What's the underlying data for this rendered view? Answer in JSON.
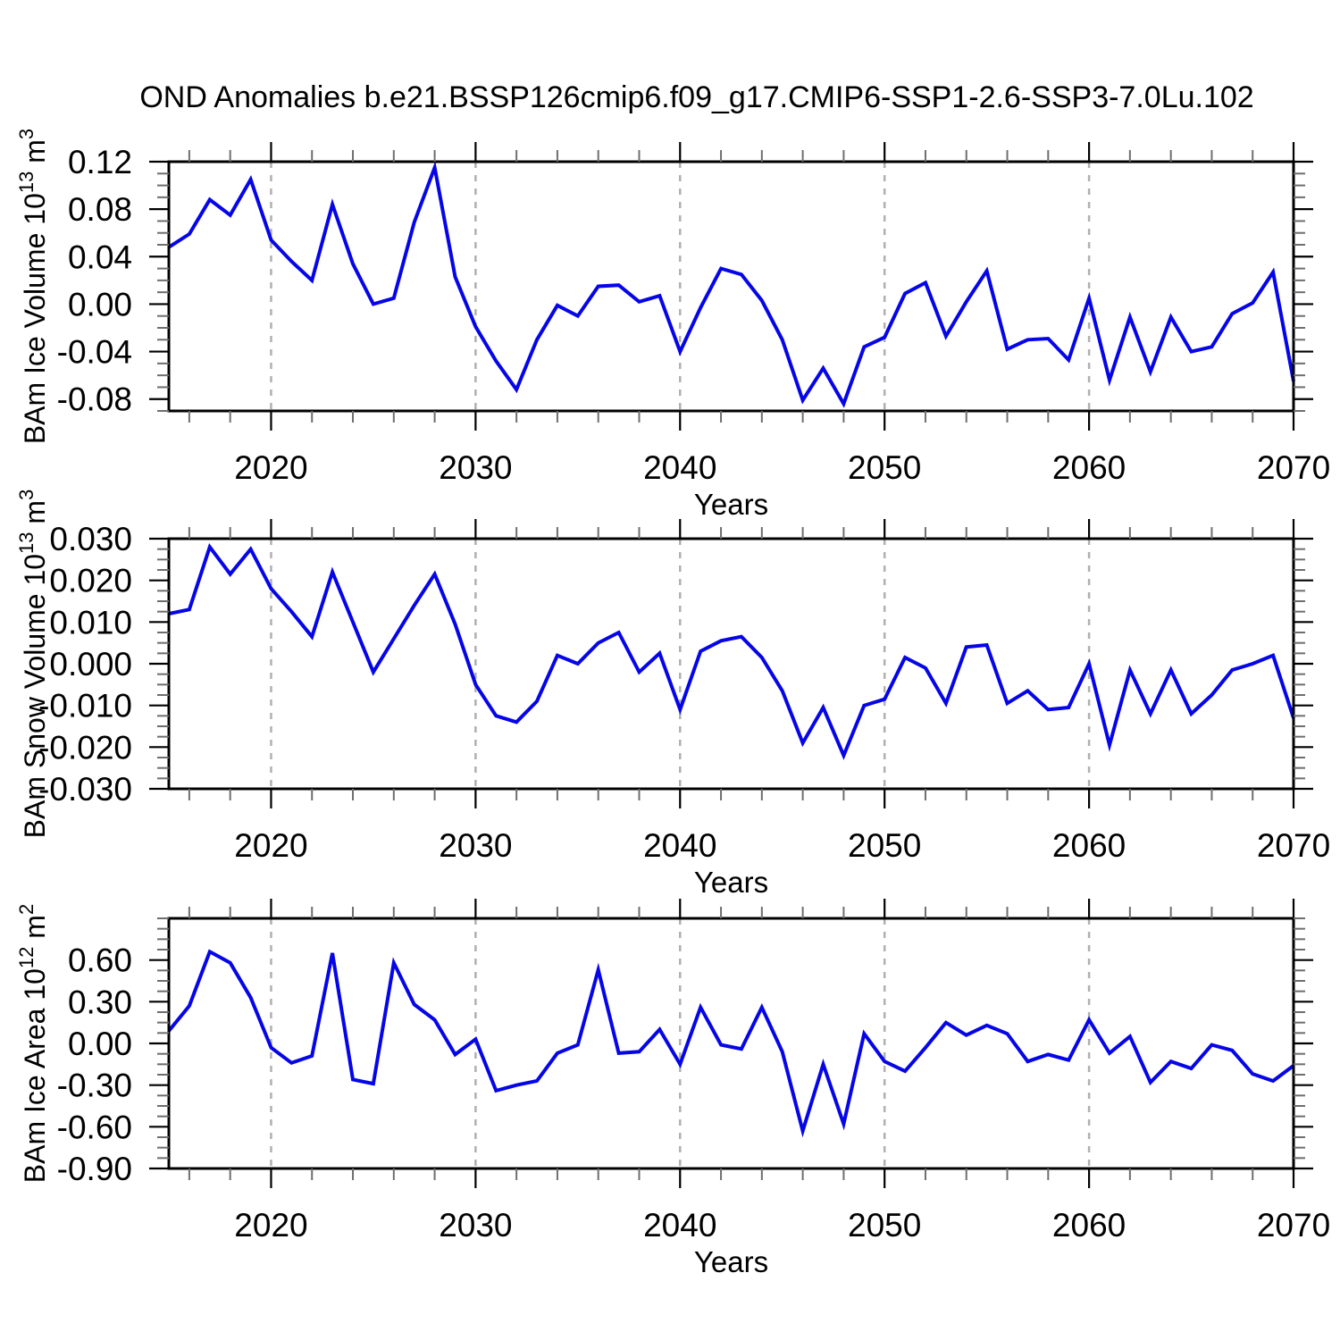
{
  "chart_data": {
    "type": "line",
    "suptitle": "OND Anomalies b.e21.BSSP126cmip6.f09_g17.CMIP6-SSP1-2.6-SSP3-7.0Lu.102",
    "xlabel": "Years",
    "xlim": [
      2015,
      2070
    ],
    "xticks_major": [
      2020,
      2030,
      2040,
      2050,
      2060,
      2070
    ],
    "xtick_minor_step": 2,
    "grid_x": [
      2020,
      2030,
      2040,
      2050,
      2060
    ],
    "line_color": "#0505e8",
    "grid_color": "#b0b0b0",
    "x": [
      2015,
      2016,
      2017,
      2018,
      2019,
      2020,
      2021,
      2022,
      2023,
      2024,
      2025,
      2026,
      2027,
      2028,
      2029,
      2030,
      2031,
      2032,
      2033,
      2034,
      2035,
      2036,
      2037,
      2038,
      2039,
      2040,
      2041,
      2042,
      2043,
      2044,
      2045,
      2046,
      2047,
      2048,
      2049,
      2050,
      2051,
      2052,
      2053,
      2054,
      2055,
      2056,
      2057,
      2058,
      2059,
      2060,
      2061,
      2062,
      2063,
      2064,
      2065,
      2066,
      2067,
      2068,
      2069,
      2070
    ],
    "panels": [
      {
        "id": "ice-volume",
        "ylabel_text": "BAm Ice Volume 10^13 m^3",
        "ylabel": {
          "pre": "BAm Ice Volume 10",
          "sup": "13",
          "mid": " m",
          "sup2": "3"
        },
        "ylim": [
          -0.09,
          0.12
        ],
        "yticks": [
          0.12,
          0.08,
          0.04,
          0,
          -0.04,
          -0.08
        ],
        "ytick_decimals": 2,
        "yminor_step": 0.01,
        "values": [
          0.048,
          0.059,
          0.088,
          0.075,
          0.105,
          0.054,
          0.036,
          0.02,
          0.084,
          0.034,
          0.0,
          0.005,
          0.069,
          0.115,
          0.023,
          -0.019,
          -0.048,
          -0.072,
          -0.03,
          -0.001,
          -0.01,
          0.015,
          0.016,
          0.002,
          0.007,
          -0.04,
          -0.003,
          0.03,
          0.025,
          0.003,
          -0.03,
          -0.081,
          -0.054,
          -0.084,
          -0.036,
          -0.028,
          0.009,
          0.018,
          -0.027,
          0.002,
          0.028,
          -0.038,
          -0.03,
          -0.029,
          -0.047,
          0.005,
          -0.064,
          -0.011,
          -0.057,
          -0.011,
          -0.04,
          -0.036,
          -0.008,
          0.001,
          0.027,
          -0.065
        ]
      },
      {
        "id": "snow-volume",
        "ylabel_text": "BAm Snow Volume 10^13 m^3",
        "ylabel": {
          "pre": "BAm Snow Volume 10",
          "sup": "13",
          "mid": " m",
          "sup2": "3"
        },
        "ylim": [
          -0.03,
          0.03
        ],
        "yticks": [
          0.03,
          0.02,
          0.01,
          0,
          -0.01,
          -0.02,
          -0.03
        ],
        "ytick_decimals": 3,
        "yminor_step": 0.0025,
        "values": [
          0.012,
          0.013,
          0.028,
          0.0215,
          0.0275,
          0.018,
          0.0125,
          0.0065,
          0.022,
          0.01,
          -0.002,
          0.006,
          0.014,
          0.0215,
          0.0095,
          -0.005,
          -0.0125,
          -0.014,
          -0.009,
          0.002,
          0.0,
          0.005,
          0.0075,
          -0.002,
          0.0025,
          -0.011,
          0.003,
          0.0055,
          0.0065,
          0.0015,
          -0.0065,
          -0.019,
          -0.0105,
          -0.022,
          -0.01,
          -0.0085,
          0.0015,
          -0.001,
          -0.0095,
          0.004,
          0.0045,
          -0.0095,
          -0.0065,
          -0.011,
          -0.0105,
          0.0,
          -0.0195,
          -0.0015,
          -0.012,
          -0.0015,
          -0.012,
          -0.0075,
          -0.0015,
          0.0,
          0.002,
          -0.013
        ]
      },
      {
        "id": "ice-area",
        "ylabel_text": "BAm Ice Area 10^12 m^2",
        "ylabel": {
          "pre": "BAm Ice Area 10",
          "sup": "12",
          "mid": " m",
          "sup2": "2"
        },
        "ylim": [
          -0.9,
          0.9
        ],
        "yticks": [
          0.6,
          0.3,
          0,
          -0.3,
          -0.6,
          -0.9
        ],
        "ytick_decimals": 2,
        "yminor_step": 0.075,
        "values": [
          0.09,
          0.27,
          0.66,
          0.58,
          0.33,
          -0.03,
          -0.14,
          -0.09,
          0.65,
          -0.26,
          -0.29,
          0.58,
          0.28,
          0.17,
          -0.08,
          0.03,
          -0.34,
          -0.3,
          -0.27,
          -0.07,
          -0.01,
          0.53,
          -0.07,
          -0.06,
          0.1,
          -0.15,
          0.26,
          -0.01,
          -0.04,
          0.26,
          -0.06,
          -0.63,
          -0.15,
          -0.58,
          0.07,
          -0.13,
          -0.2,
          -0.03,
          0.15,
          0.06,
          0.13,
          0.07,
          -0.13,
          -0.08,
          -0.12,
          0.17,
          -0.07,
          0.05,
          -0.28,
          -0.13,
          -0.18,
          -0.01,
          -0.05,
          -0.22,
          -0.27,
          -0.16
        ]
      }
    ]
  }
}
